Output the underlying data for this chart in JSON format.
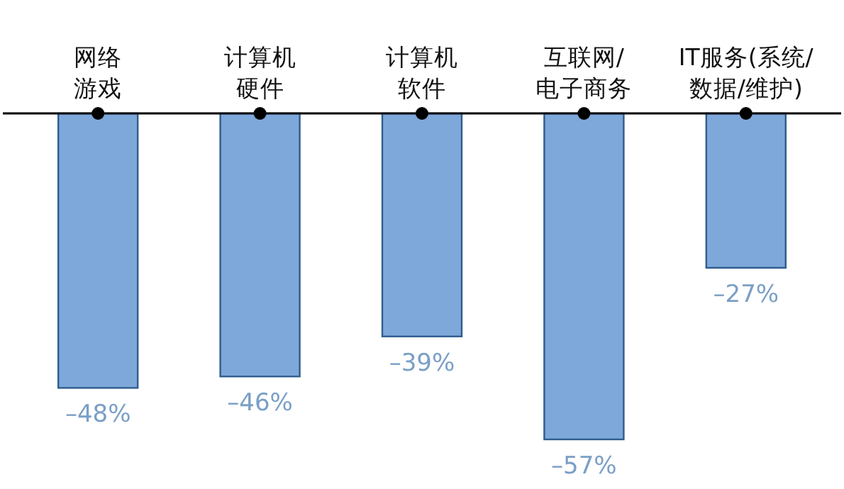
{
  "chart_data": {
    "type": "bar",
    "categories": [
      "网络游戏",
      "计算机硬件",
      "计算机软件",
      "互联网/电子商务",
      "IT服务(系统/数据/维护)"
    ],
    "values": [
      -48,
      -46,
      -39,
      -57,
      -27
    ],
    "value_labels": [
      "–48%",
      "–46%",
      "–39%",
      "–57%",
      "–27%"
    ],
    "color": "#7ea7da",
    "grid": false
  }
}
